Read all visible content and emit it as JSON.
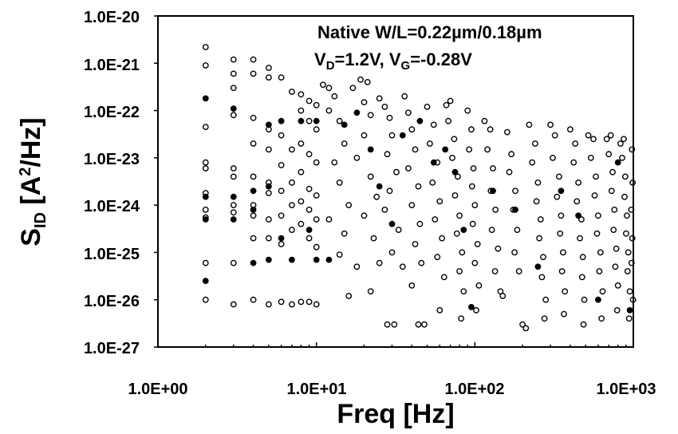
{
  "chart_data": {
    "type": "scatter",
    "title": "",
    "xlabel": "Freq [Hz]",
    "ylabel": {
      "main": "S",
      "sub": "ID",
      "unit_open": " [A",
      "sup": "2",
      "unit_close": "/Hz]"
    },
    "xscale": "log",
    "yscale": "log",
    "xlim": [
      1,
      1000
    ],
    "ylim": [
      1e-27,
      1e-20
    ],
    "x_tick_labels": [
      "1.0E+00",
      "1.0E+01",
      "1.0E+02",
      "1.0E+03"
    ],
    "y_tick_labels": [
      "1.0E-20",
      "1.0E-21",
      "1.0E-22",
      "1.0E-23",
      "1.0E-24",
      "1.0E-25",
      "1.0E-26",
      "1.0E-27"
    ],
    "grid": false,
    "annotations": {
      "line1": "Native W/L=0.22µm/0.18µm",
      "line2": {
        "vd_main": "V",
        "vd_sub": "D",
        "vd_val": "=1.2V, ",
        "vg_main": "V",
        "vg_sub": "G",
        "vg_val": "=-0.28V"
      }
    },
    "series": [
      {
        "marker": "open-circle",
        "points": [
          [
            2,
            2.2e-21
          ],
          [
            2,
            9e-22
          ],
          [
            2,
            4.5e-23
          ],
          [
            2,
            8e-24
          ],
          [
            2,
            6e-24
          ],
          [
            2,
            1.8e-24
          ],
          [
            2,
            8e-25
          ],
          [
            2,
            5.5e-25
          ],
          [
            2,
            6e-26
          ],
          [
            2,
            1e-26
          ],
          [
            3,
            1.2e-21
          ],
          [
            3,
            6e-22
          ],
          [
            3,
            3e-22
          ],
          [
            3,
            8e-23
          ],
          [
            3,
            6e-24
          ],
          [
            3,
            4e-24
          ],
          [
            3,
            1e-24
          ],
          [
            3,
            7e-25
          ],
          [
            3,
            6e-26
          ],
          [
            3,
            8e-27
          ],
          [
            4,
            1.2e-21
          ],
          [
            4,
            6e-22
          ],
          [
            4,
            7e-23
          ],
          [
            4,
            2e-23
          ],
          [
            4,
            4e-24
          ],
          [
            4,
            1e-24
          ],
          [
            4,
            6e-25
          ],
          [
            4,
            2e-25
          ],
          [
            4,
            1e-26
          ],
          [
            5,
            8e-22
          ],
          [
            5,
            5e-22
          ],
          [
            5,
            4e-23
          ],
          [
            5,
            1.5e-23
          ],
          [
            5,
            3e-24
          ],
          [
            5,
            1.8e-24
          ],
          [
            5,
            5e-25
          ],
          [
            5,
            2e-25
          ],
          [
            5,
            8e-27
          ],
          [
            6,
            5e-22
          ],
          [
            6,
            3e-23
          ],
          [
            6,
            7e-24
          ],
          [
            6,
            2e-24
          ],
          [
            6,
            6e-25
          ],
          [
            6,
            1.5e-25
          ],
          [
            6,
            9e-27
          ],
          [
            7,
            2.5e-22
          ],
          [
            7,
            1.5e-23
          ],
          [
            7,
            3e-24
          ],
          [
            7,
            1e-24
          ],
          [
            7,
            3e-25
          ],
          [
            7,
            8e-27
          ],
          [
            8,
            2.2e-22
          ],
          [
            8,
            1e-22
          ],
          [
            8,
            2e-23
          ],
          [
            8,
            5e-24
          ],
          [
            8,
            1.2e-24
          ],
          [
            8,
            4e-25
          ],
          [
            8,
            9e-27
          ],
          [
            9,
            1.6e-22
          ],
          [
            9,
            6e-23
          ],
          [
            9,
            1.2e-23
          ],
          [
            9,
            2.2e-24
          ],
          [
            9,
            8e-25
          ],
          [
            9,
            2e-25
          ],
          [
            9,
            9e-27
          ],
          [
            10,
            1.3e-22
          ],
          [
            10,
            4e-23
          ],
          [
            10,
            8e-24
          ],
          [
            10,
            1.6e-24
          ],
          [
            10,
            5e-25
          ],
          [
            10,
            1.3e-25
          ],
          [
            10,
            8e-27
          ],
          [
            11,
            3.5e-22
          ],
          [
            12,
            3e-22
          ],
          [
            13,
            2e-22
          ],
          [
            12,
            1e-22
          ],
          [
            14,
            6e-23
          ],
          [
            15,
            2e-23
          ],
          [
            13,
            8e-24
          ],
          [
            14,
            3e-24
          ],
          [
            16,
            1e-24
          ],
          [
            12,
            5e-25
          ],
          [
            15,
            2.5e-25
          ],
          [
            14,
            9e-26
          ],
          [
            18,
            5e-26
          ],
          [
            16,
            1.2e-26
          ],
          [
            17,
            3e-22
          ],
          [
            19,
            4.5e-22
          ],
          [
            21,
            4e-22
          ],
          [
            20,
            1.5e-22
          ],
          [
            22,
            8e-23
          ],
          [
            20,
            3e-23
          ],
          [
            18,
            1e-23
          ],
          [
            22,
            4e-24
          ],
          [
            24,
            1.5e-24
          ],
          [
            20,
            6e-25
          ],
          [
            23,
            2e-25
          ],
          [
            25,
            6e-26
          ],
          [
            22,
            1.5e-26
          ],
          [
            25,
            1.8e-22
          ],
          [
            27,
            1.2e-22
          ],
          [
            29,
            7e-23
          ],
          [
            30,
            3e-23
          ],
          [
            28,
            1.2e-23
          ],
          [
            32,
            5e-24
          ],
          [
            29,
            2e-24
          ],
          [
            27,
            8e-25
          ],
          [
            33,
            3e-25
          ],
          [
            30,
            1e-25
          ],
          [
            28,
            3e-27
          ],
          [
            31,
            3e-27
          ],
          [
            35,
            5e-26
          ],
          [
            36,
            2e-22
          ],
          [
            38,
            9e-23
          ],
          [
            40,
            4e-23
          ],
          [
            42,
            1.5e-23
          ],
          [
            38,
            6e-24
          ],
          [
            44,
            2.5e-24
          ],
          [
            40,
            1e-24
          ],
          [
            45,
            4e-25
          ],
          [
            42,
            1.5e-25
          ],
          [
            46,
            6e-26
          ],
          [
            40,
            2e-26
          ],
          [
            44,
            3e-27
          ],
          [
            48,
            3e-27
          ],
          [
            50,
            1.2e-22
          ],
          [
            55,
            5e-23
          ],
          [
            52,
            2e-23
          ],
          [
            58,
            8e-24
          ],
          [
            54,
            3e-24
          ],
          [
            60,
            1.2e-24
          ],
          [
            56,
            5e-25
          ],
          [
            62,
            2e-25
          ],
          [
            58,
            8e-26
          ],
          [
            64,
            3e-26
          ],
          [
            60,
            6e-27
          ],
          [
            66,
            1.3e-22
          ],
          [
            70,
            1.6e-22
          ],
          [
            68,
            6e-23
          ],
          [
            74,
            2.5e-23
          ],
          [
            72,
            1e-23
          ],
          [
            78,
            4e-24
          ],
          [
            75,
            1.6e-24
          ],
          [
            80,
            6e-25
          ],
          [
            77,
            2.5e-25
          ],
          [
            83,
            1e-25
          ],
          [
            80,
            4e-26
          ],
          [
            85,
            1.5e-26
          ],
          [
            82,
            4e-27
          ],
          [
            90,
            1e-22
          ],
          [
            95,
            4e-23
          ],
          [
            92,
            1.5e-23
          ],
          [
            98,
            6e-24
          ],
          [
            96,
            2.5e-24
          ],
          [
            100,
            1e-24
          ],
          [
            97,
            4e-25
          ],
          [
            104,
            1.5e-25
          ],
          [
            100,
            6e-26
          ],
          [
            106,
            2e-26
          ],
          [
            102,
            6e-27
          ],
          [
            115,
            6e-23
          ],
          [
            125,
            4e-23
          ],
          [
            120,
            1.5e-23
          ],
          [
            130,
            6e-24
          ],
          [
            126,
            2e-24
          ],
          [
            135,
            8e-25
          ],
          [
            128,
            3e-25
          ],
          [
            140,
            1.2e-25
          ],
          [
            134,
            4e-26
          ],
          [
            145,
            1.5e-26
          ],
          [
            150,
            1.2e-26
          ],
          [
            160,
            3.5e-23
          ],
          [
            170,
            1.2e-23
          ],
          [
            165,
            5e-24
          ],
          [
            180,
            2e-24
          ],
          [
            175,
            8e-25
          ],
          [
            185,
            3e-25
          ],
          [
            178,
            1e-25
          ],
          [
            190,
            4e-26
          ],
          [
            200,
            3e-27
          ],
          [
            210,
            2.5e-27
          ],
          [
            220,
            5e-23
          ],
          [
            240,
            2e-23
          ],
          [
            230,
            8e-24
          ],
          [
            250,
            3e-24
          ],
          [
            245,
            1.2e-24
          ],
          [
            260,
            5e-25
          ],
          [
            255,
            2e-25
          ],
          [
            270,
            8e-26
          ],
          [
            265,
            3e-26
          ],
          [
            280,
            1e-26
          ],
          [
            275,
            4e-27
          ],
          [
            300,
            5e-23
          ],
          [
            320,
            3e-23
          ],
          [
            310,
            1e-23
          ],
          [
            340,
            4e-24
          ],
          [
            330,
            1.5e-24
          ],
          [
            350,
            6e-25
          ],
          [
            345,
            2.5e-25
          ],
          [
            360,
            1e-25
          ],
          [
            355,
            4e-26
          ],
          [
            370,
            1.5e-26
          ],
          [
            365,
            5e-27
          ],
          [
            400,
            4e-23
          ],
          [
            430,
            2e-23
          ],
          [
            420,
            8e-24
          ],
          [
            450,
            3e-24
          ],
          [
            440,
            1.2e-24
          ],
          [
            470,
            5e-25
          ],
          [
            460,
            2e-25
          ],
          [
            480,
            8e-26
          ],
          [
            475,
            3e-26
          ],
          [
            490,
            1e-26
          ],
          [
            485,
            3e-27
          ],
          [
            520,
            3e-23
          ],
          [
            560,
            2.5e-23
          ],
          [
            540,
            1e-23
          ],
          [
            580,
            4e-24
          ],
          [
            570,
            1.6e-24
          ],
          [
            600,
            6e-25
          ],
          [
            590,
            2.5e-25
          ],
          [
            620,
            1e-25
          ],
          [
            610,
            4e-26
          ],
          [
            640,
            1.5e-26
          ],
          [
            630,
            4e-27
          ],
          [
            680,
            2.5e-23
          ],
          [
            720,
            3e-23
          ],
          [
            700,
            1.2e-23
          ],
          [
            740,
            5e-24
          ],
          [
            730,
            2e-24
          ],
          [
            760,
            8e-25
          ],
          [
            750,
            3e-25
          ],
          [
            780,
            1.2e-25
          ],
          [
            770,
            5e-26
          ],
          [
            800,
            2e-26
          ],
          [
            790,
            6e-27
          ],
          [
            830,
            2e-23
          ],
          [
            870,
            2.5e-23
          ],
          [
            850,
            1e-23
          ],
          [
            890,
            4e-24
          ],
          [
            880,
            1.5e-24
          ],
          [
            910,
            6e-25
          ],
          [
            900,
            2.5e-25
          ],
          [
            930,
            1e-25
          ],
          [
            920,
            4e-26
          ],
          [
            950,
            1.5e-26
          ],
          [
            940,
            4e-27
          ],
          [
            980,
            1.5e-23
          ],
          [
            990,
            3e-24
          ],
          [
            970,
            8e-25
          ],
          [
            985,
            2e-25
          ],
          [
            975,
            6e-26
          ],
          [
            995,
            1e-26
          ]
        ]
      },
      {
        "marker": "filled-circle",
        "points": [
          [
            2,
            1.8e-22
          ],
          [
            2,
            1.5e-24
          ],
          [
            2,
            5e-25
          ],
          [
            2,
            2.5e-26
          ],
          [
            3,
            1.1e-22
          ],
          [
            3,
            1.5e-24
          ],
          [
            3,
            5e-25
          ],
          [
            4,
            2e-24
          ],
          [
            4,
            8e-25
          ],
          [
            4,
            6e-26
          ],
          [
            5,
            5e-23
          ],
          [
            5,
            2.5e-24
          ],
          [
            5,
            7e-26
          ],
          [
            6,
            6e-23
          ],
          [
            6,
            2e-25
          ],
          [
            7,
            7e-26
          ],
          [
            8,
            6e-23
          ],
          [
            9,
            3e-25
          ],
          [
            10,
            6e-23
          ],
          [
            10,
            7e-26
          ],
          [
            12,
            7e-26
          ],
          [
            15,
            5e-23
          ],
          [
            18,
            9e-23
          ],
          [
            22,
            1.5e-23
          ],
          [
            25,
            2.5e-24
          ],
          [
            30,
            4e-25
          ],
          [
            35,
            3e-23
          ],
          [
            45,
            6e-23
          ],
          [
            55,
            8e-24
          ],
          [
            65,
            1.5e-23
          ],
          [
            75,
            5e-24
          ],
          [
            85,
            3e-25
          ],
          [
            95,
            7e-27
          ],
          [
            130,
            2e-24
          ],
          [
            180,
            8e-25
          ],
          [
            250,
            5e-26
          ],
          [
            350,
            2e-24
          ],
          [
            450,
            6e-25
          ],
          [
            600,
            1e-26
          ],
          [
            800,
            8e-24
          ],
          [
            950,
            6e-27
          ]
        ]
      }
    ]
  }
}
